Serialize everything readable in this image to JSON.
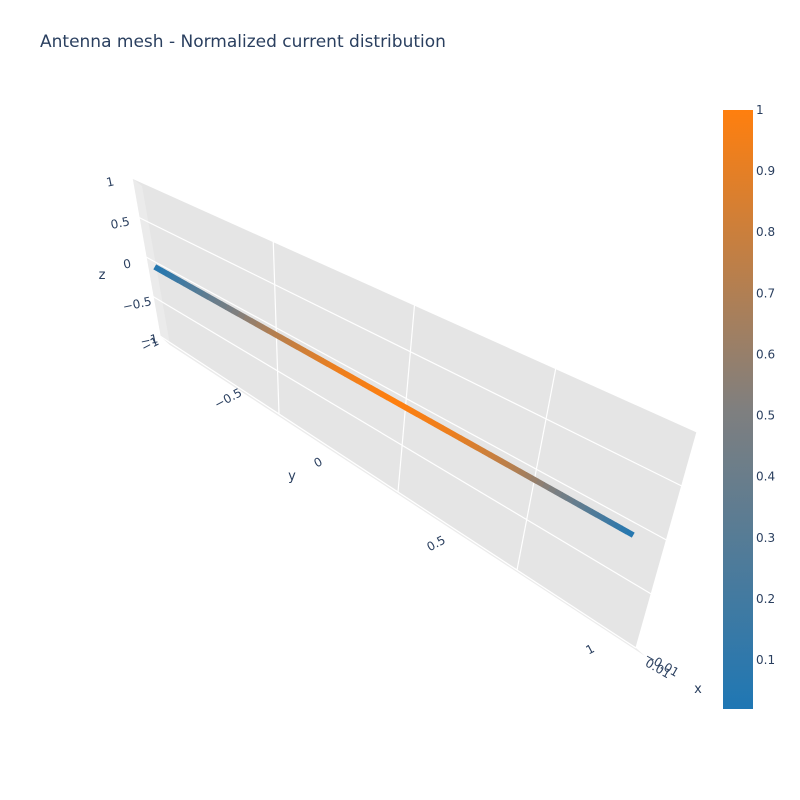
{
  "chart_data": {
    "type": "surface",
    "title": "Antenna mesh - Normalized current distribution",
    "axes": {
      "x": {
        "label": "x",
        "ticks": [
          "−0.01",
          "0.01"
        ]
      },
      "y": {
        "label": "y",
        "ticks": [
          "−1",
          "−0.5",
          "0",
          "0.5",
          "1"
        ]
      },
      "z": {
        "label": "z",
        "ticks": [
          "−1",
          "−0.5",
          "0",
          "0.5",
          "1"
        ]
      }
    },
    "colorscale": {
      "stops": [
        {
          "value": 0,
          "color": "#1f77b4"
        },
        {
          "value": 0.5,
          "color": "#7f7f7f"
        },
        {
          "value": 1,
          "color": "#ff7f0e"
        }
      ],
      "ticks": [
        "0.1",
        "0.2",
        "0.3",
        "0.4",
        "0.5",
        "0.6",
        "0.7",
        "0.8",
        "0.9",
        "1"
      ],
      "range": [
        0.02,
        1
      ]
    },
    "mesh": {
      "description_y_range": [
        -1,
        1
      ],
      "current_profile": [
        {
          "y": -1,
          "value": 0.02
        },
        {
          "y": -0.75,
          "value": 0.38
        },
        {
          "y": -0.5,
          "value": 0.71
        },
        {
          "y": -0.25,
          "value": 0.92
        },
        {
          "y": 0,
          "value": 1.0
        },
        {
          "y": 0.25,
          "value": 0.92
        },
        {
          "y": 0.5,
          "value": 0.71
        },
        {
          "y": 0.75,
          "value": 0.38
        },
        {
          "y": 1,
          "value": 0.02
        }
      ]
    },
    "grid": true,
    "background": "#e5e5e5"
  }
}
